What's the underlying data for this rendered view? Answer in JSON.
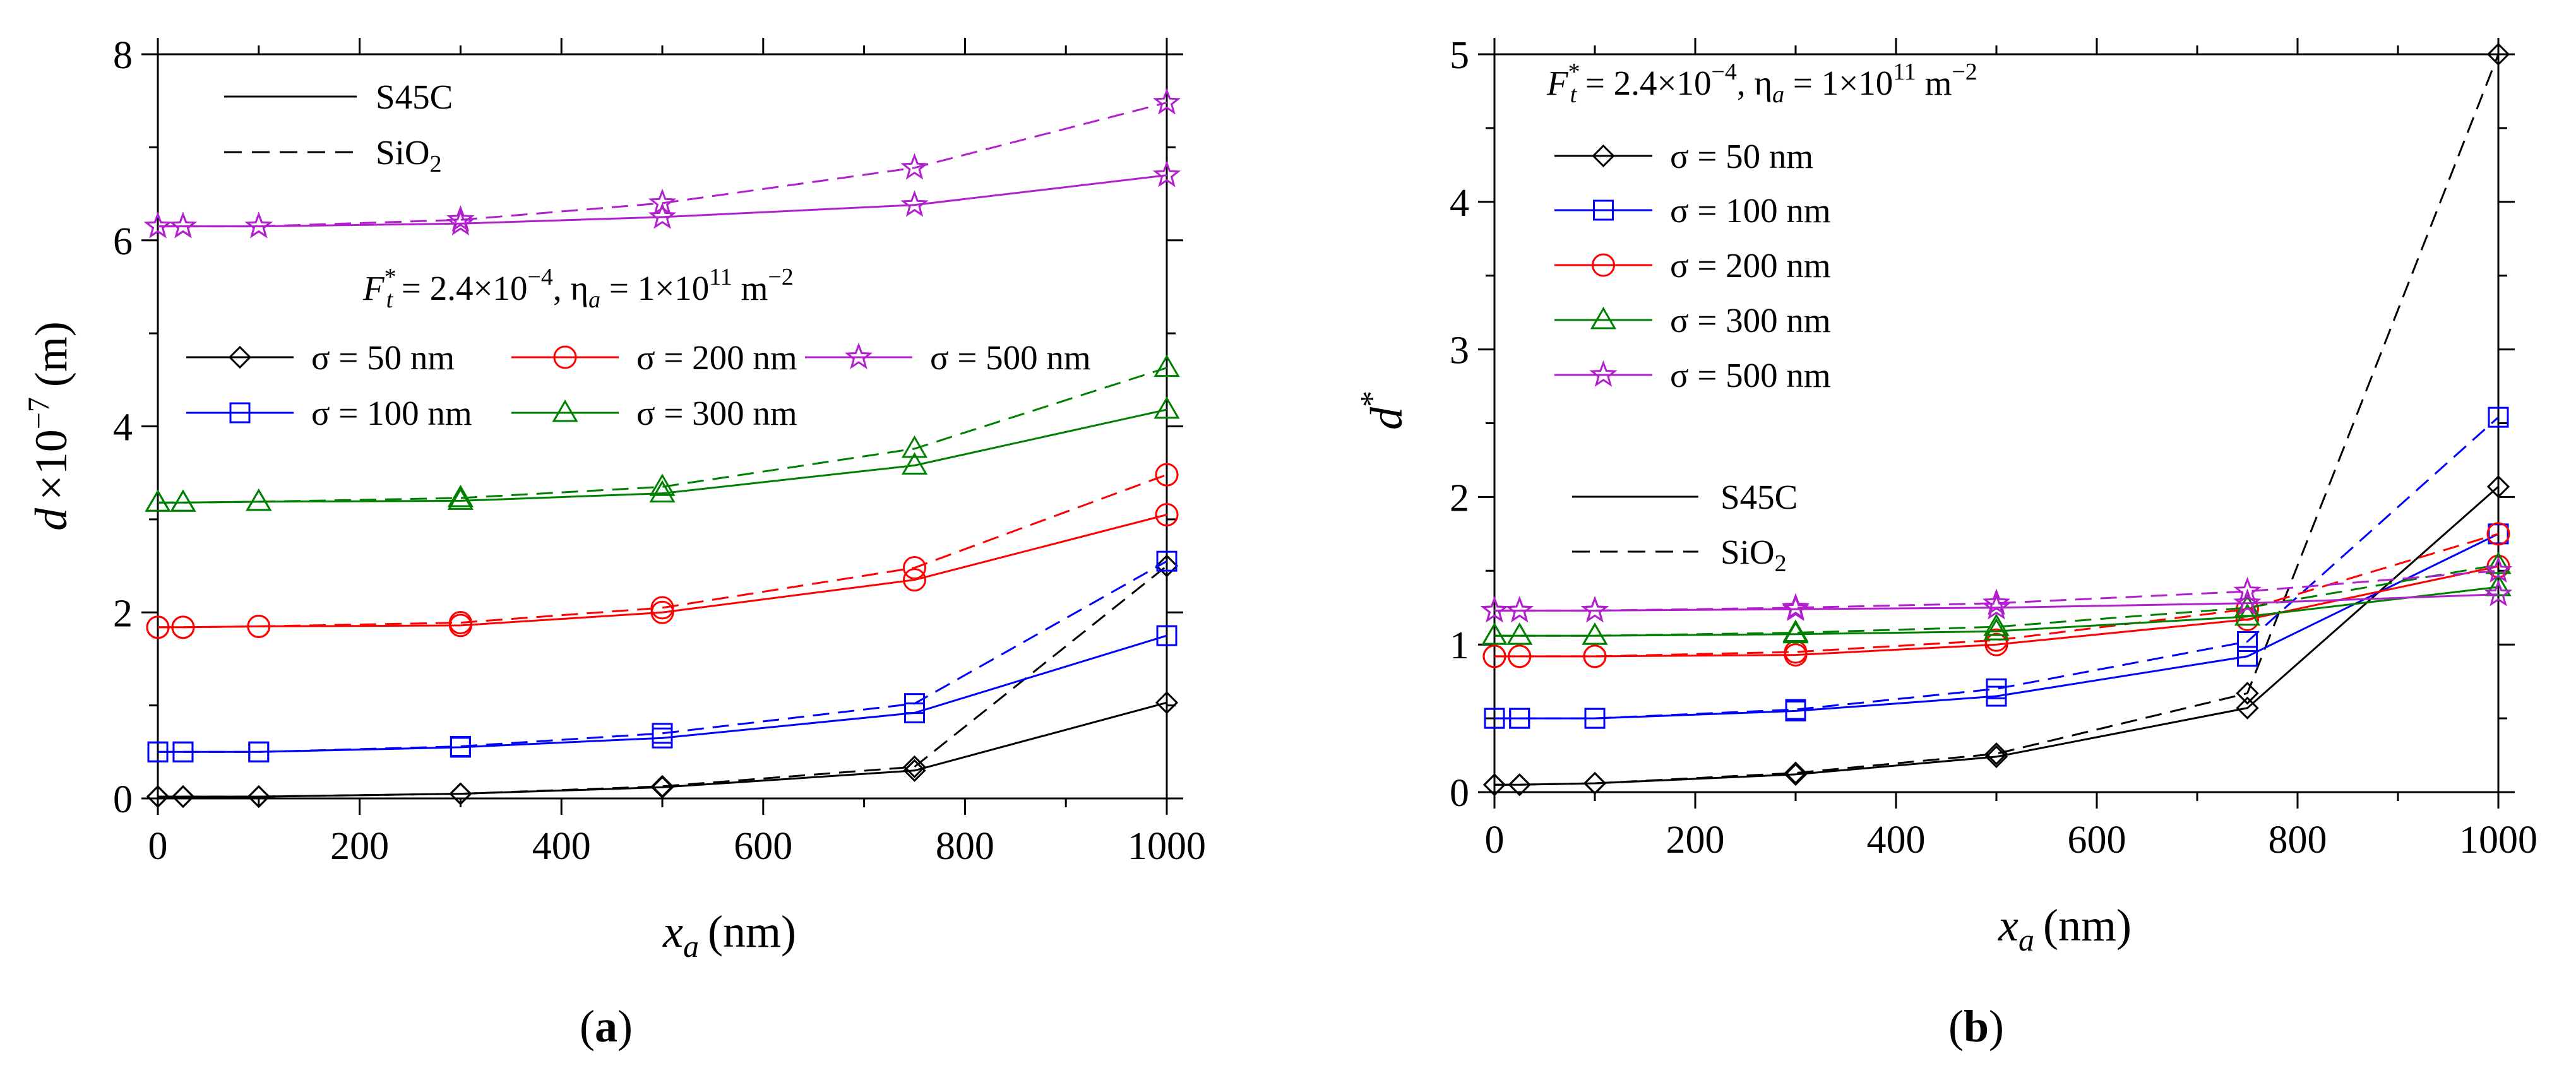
{
  "chart_data": [
    {
      "id": "a",
      "type": "line",
      "caption": {
        "open": "(",
        "letter": "a",
        "close": ")"
      },
      "xlabel": {
        "symbol": "x",
        "sub": "a",
        "unit": "(nm)"
      },
      "ylabel": {
        "symbol": "d",
        "times": "×10",
        "exp": "−7",
        "unit": "(m)"
      },
      "xlim": [
        0,
        1000
      ],
      "ylim": [
        0,
        8
      ],
      "xticks": [
        0,
        200,
        400,
        600,
        800,
        1000
      ],
      "yticks": [
        0,
        2,
        4,
        6,
        8
      ],
      "xtick_labels": [
        "0",
        "200",
        "400",
        "600",
        "800",
        "1000"
      ],
      "ytick_labels": [
        "0",
        "2",
        "4",
        "6",
        "8"
      ],
      "annotation": {
        "F": "F",
        "Fsub": "t",
        "Fsup": "*",
        "Fval": " = 2.4×10",
        "Fexp": "−4",
        "sep": ",  ",
        "eta": "η",
        "etasub": "a",
        "etaval": " = 1×10",
        "etaexp": "11",
        "unit": " m",
        "unitexp": "−2"
      },
      "material_legend": [
        {
          "label": "S45C",
          "dash": "solid"
        },
        {
          "label": "SiO",
          "sub": "2",
          "dash": "dashed"
        }
      ],
      "x": [
        0,
        25,
        100,
        300,
        500,
        750,
        1000
      ],
      "series": [
        {
          "name": "σ = 50 nm",
          "color": "#000000",
          "marker": "diamond",
          "S45C": [
            0.02,
            0.02,
            0.02,
            0.05,
            0.12,
            0.3,
            1.03
          ],
          "SiO2": [
            0.02,
            0.02,
            0.02,
            0.05,
            0.13,
            0.34,
            2.5
          ]
        },
        {
          "name": "σ = 100 nm",
          "color": "#0000ff",
          "marker": "square",
          "S45C": [
            0.5,
            0.5,
            0.5,
            0.55,
            0.65,
            0.92,
            1.75
          ],
          "SiO2": [
            0.5,
            0.5,
            0.5,
            0.56,
            0.7,
            1.02,
            2.55
          ]
        },
        {
          "name": "σ = 200 nm",
          "color": "#ff0000",
          "marker": "circle",
          "S45C": [
            1.84,
            1.84,
            1.85,
            1.86,
            2.0,
            2.35,
            3.05
          ],
          "SiO2": [
            1.84,
            1.84,
            1.85,
            1.89,
            2.05,
            2.48,
            3.48
          ]
        },
        {
          "name": "σ = 300 nm",
          "color": "#008000",
          "marker": "triangle",
          "S45C": [
            3.18,
            3.18,
            3.19,
            3.2,
            3.28,
            3.58,
            4.18
          ],
          "SiO2": [
            3.18,
            3.18,
            3.19,
            3.23,
            3.35,
            3.76,
            4.63
          ]
        },
        {
          "name": "σ = 500 nm",
          "color": "#b21fcc",
          "marker": "star",
          "S45C": [
            6.15,
            6.15,
            6.15,
            6.18,
            6.25,
            6.38,
            6.7
          ],
          "SiO2": [
            6.15,
            6.15,
            6.15,
            6.22,
            6.4,
            6.78,
            7.48
          ]
        }
      ]
    },
    {
      "id": "b",
      "type": "line",
      "caption": {
        "open": "(",
        "letter": "b",
        "close": ")"
      },
      "xlabel": {
        "symbol": "x",
        "sub": "a",
        "unit": "(nm)"
      },
      "ylabel": {
        "symbol": "d",
        "sup": "*"
      },
      "xlim": [
        0,
        1000
      ],
      "ylim": [
        0,
        5
      ],
      "xticks": [
        0,
        200,
        400,
        600,
        800,
        1000
      ],
      "yticks": [
        0,
        1,
        2,
        3,
        4,
        5
      ],
      "xtick_labels": [
        "0",
        "200",
        "400",
        "600",
        "800",
        "1000"
      ],
      "ytick_labels": [
        "0",
        "1",
        "2",
        "3",
        "4",
        "5"
      ],
      "annotation": {
        "F": "F",
        "Fsub": "t",
        "Fsup": "*",
        "Fval": " = 2.4×10",
        "Fexp": "−4",
        "sep": ",  ",
        "eta": "η",
        "etasub": "a",
        "etaval": " = 1×10",
        "etaexp": "11",
        "unit": " m",
        "unitexp": "−2"
      },
      "material_legend": [
        {
          "label": "S45C",
          "dash": "solid"
        },
        {
          "label": "SiO",
          "sub": "2",
          "dash": "dashed"
        }
      ],
      "x": [
        0,
        25,
        100,
        300,
        500,
        750,
        1000
      ],
      "series": [
        {
          "name": "σ = 50 nm",
          "color": "#000000",
          "marker": "diamond",
          "S45C": [
            0.05,
            0.05,
            0.06,
            0.12,
            0.24,
            0.57,
            2.07
          ],
          "SiO2": [
            0.05,
            0.05,
            0.06,
            0.13,
            0.26,
            0.67,
            5.0
          ]
        },
        {
          "name": "σ = 100 nm",
          "color": "#0000ff",
          "marker": "square",
          "S45C": [
            0.5,
            0.5,
            0.5,
            0.55,
            0.65,
            0.92,
            1.75
          ],
          "SiO2": [
            0.5,
            0.5,
            0.5,
            0.56,
            0.7,
            1.02,
            2.54
          ]
        },
        {
          "name": "σ = 200 nm",
          "color": "#ff0000",
          "marker": "circle",
          "S45C": [
            0.92,
            0.92,
            0.92,
            0.93,
            1.0,
            1.17,
            1.53
          ],
          "SiO2": [
            0.92,
            0.92,
            0.92,
            0.95,
            1.03,
            1.24,
            1.75
          ]
        },
        {
          "name": "σ = 300 nm",
          "color": "#008000",
          "marker": "triangle",
          "S45C": [
            1.06,
            1.06,
            1.06,
            1.07,
            1.09,
            1.19,
            1.39
          ],
          "SiO2": [
            1.06,
            1.06,
            1.06,
            1.08,
            1.12,
            1.25,
            1.54
          ]
        },
        {
          "name": "σ = 500 nm",
          "color": "#b21fcc",
          "marker": "star",
          "S45C": [
            1.23,
            1.23,
            1.23,
            1.24,
            1.25,
            1.28,
            1.34
          ],
          "SiO2": [
            1.23,
            1.23,
            1.23,
            1.25,
            1.28,
            1.36,
            1.5
          ]
        }
      ]
    }
  ]
}
